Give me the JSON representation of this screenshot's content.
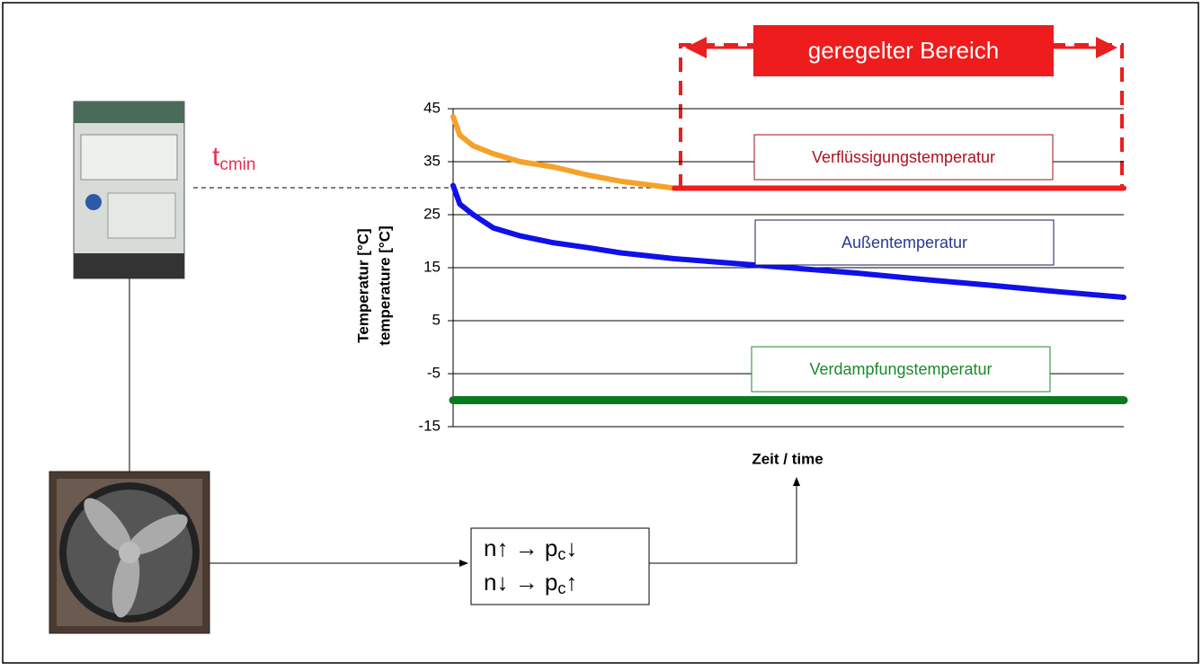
{
  "chart_data": {
    "type": "line",
    "ylabel": [
      "Temperatur [°C]",
      "temperature [°C]"
    ],
    "xlabel": "Zeit / time",
    "x": [
      0,
      1,
      3,
      6,
      10,
      15,
      20,
      25,
      33,
      40,
      50,
      60,
      70,
      80,
      90,
      100
    ],
    "xlim": [
      0,
      100
    ],
    "ylim": [
      -15,
      45
    ],
    "yticks": [
      45,
      35,
      25,
      15,
      5,
      -5,
      -15
    ],
    "grid": true,
    "series": [
      {
        "color": "#f5a22a",
        "values": [
          43.5,
          40,
          38,
          36.5,
          35,
          34,
          32.5,
          31.3,
          30,
          null,
          null,
          null,
          null,
          null,
          null,
          null
        ]
      },
      {
        "name": "Verflüssigungstemperatur",
        "color": "#ee1c1c",
        "values": [
          null,
          null,
          null,
          null,
          null,
          null,
          null,
          null,
          30,
          30,
          30,
          30,
          30,
          30,
          30,
          30
        ]
      },
      {
        "name": "Außentemperatur",
        "color": "#1010e8",
        "values": [
          30.5,
          27,
          25,
          22.5,
          21,
          19.7,
          18.8,
          17.8,
          16.7,
          16,
          15,
          14,
          12.8,
          11.7,
          10.5,
          9.4
        ]
      },
      {
        "name": "Verdampfungstemperatur",
        "color": "#0a7a1e",
        "values": [
          -10,
          -10,
          -10,
          -10,
          -10,
          -10,
          -10,
          -10,
          -10,
          -10,
          -10,
          -10,
          -10,
          -10,
          -10,
          -10
        ]
      }
    ]
  },
  "diagram": {
    "threshold_label": {
      "main": "t",
      "sub": "cmin"
    },
    "range_label": "geregelter Bereich",
    "formula": [
      {
        "start": "n↑ → p",
        "sub": "c",
        "end": "↓"
      },
      {
        "start": "n↓ → p",
        "sub": "c",
        "end": "↑"
      }
    ]
  }
}
